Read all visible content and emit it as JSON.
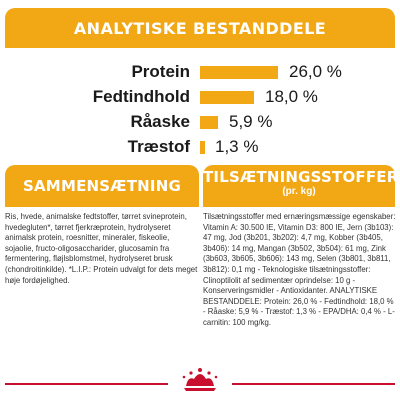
{
  "header": {
    "title": "ANALYTISKE BESTANDDELE"
  },
  "nutrients": [
    {
      "label": "Protein",
      "value": "26,0 %",
      "percent": 26.0
    },
    {
      "label": "Fedtindhold",
      "value": "18,0 %",
      "percent": 18.0
    },
    {
      "label": "Råaske",
      "value": "5,9 %",
      "percent": 5.9
    },
    {
      "label": "Træstof",
      "value": "1,3 %",
      "percent": 1.3
    }
  ],
  "composition": {
    "title": "SAMMENSÆTNING",
    "text": "Ris, hvede, animalske fedtstoffer, tørret svineprotein, hvedegluten*, tørret fjerkræprotein, hydrolyseret animalsk protein, roesnitter, mineraler, fiskeolie, sojaolie, fructo-oligosaccharider, glucosamin fra fermentering, fløjlsblomstmel, hydrolyseret brusk (chondroitinkilde). *L.I.P.: Protein udvalgt for dets meget høje fordøjelighed."
  },
  "additives": {
    "title": "TILSÆTNINGSSTOFFER",
    "subtitle": "(pr. kg)",
    "text": "Tilsætningsstoffer med ernæringsmæssige egenskaber: Vitamin A: 30.500 IE, Vitamin D3: 800 IE, Jern (3b103): 47 mg, Jod (3b201, 3b202): 4,7 mg, Kobber (3b405, 3b406): 14 mg, Mangan (3b502, 3b504): 61 mg, Zink (3b603, 3b605, 3b606): 143 mg, Selen (3b801, 3b811, 3b812): 0,1 mg - Teknologiske tilsætningsstoffer: Clinoptilolit af sedimentær oprindelse: 10 g - Konserveringsmidler - Antioxidanter. ANALYTISKE BESTANDDELE: Protein: 26,0 % - Fedtindhold: 18,0 % - Råaske: 5,9 % - Træstof: 1,3 % - EPA/DHA: 0,4 % - L-carnitin: 100 mg/kg."
  },
  "brand": {
    "logo_icon": "royal-canin-crown-logo",
    "accent": "#f2a715",
    "line": "#c8102e"
  }
}
